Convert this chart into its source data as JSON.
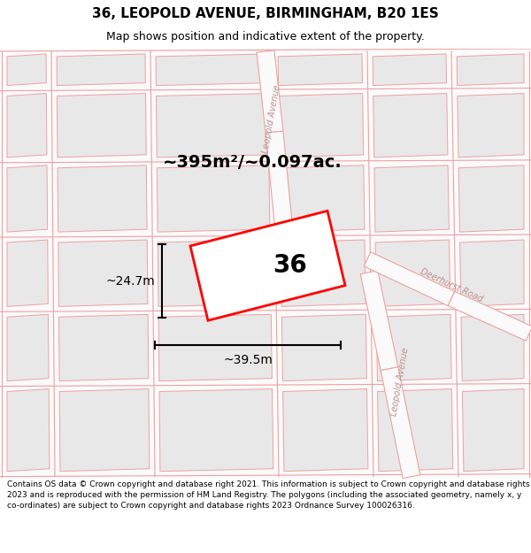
{
  "title": "36, LEOPOLD AVENUE, BIRMINGHAM, B20 1ES",
  "subtitle": "Map shows position and indicative extent of the property.",
  "footer": "Contains OS data © Crown copyright and database right 2021. This information is subject to Crown copyright and database rights 2023 and is reproduced with the permission of HM Land Registry. The polygons (including the associated geometry, namely x, y co-ordinates) are subject to Crown copyright and database rights 2023 Ordnance Survey 100026316.",
  "area_label": "~395m²/~0.097ac.",
  "width_label": "~39.5m",
  "height_label": "~24.7m",
  "plot_number": "36",
  "map_bg": "#f9f9f9",
  "block_color": "#e8e8e8",
  "road_line_color": "#f0a0a0",
  "plot_outline_color": "#ff0000",
  "road_label_leopold_top": "Leopold Avenue",
  "road_label_deerhurst": "Deerhurst Road",
  "road_label_leopold_bottom": "Leopold Avenue",
  "title_fontsize": 11,
  "subtitle_fontsize": 9,
  "footer_fontsize": 6.5
}
